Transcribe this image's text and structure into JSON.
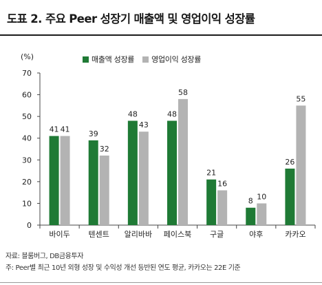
{
  "title": "도표 2. 주요 Peer 성장기 매출액 및 영업이익 성장률",
  "colors": {
    "revenue": "#1f7a35",
    "operating": "#b3b3b3"
  },
  "chart_data": {
    "type": "bar",
    "ylabel": "(%)",
    "ylim": [
      0,
      70
    ],
    "yticks": [
      0,
      10,
      20,
      30,
      40,
      50,
      60,
      70
    ],
    "grid": false,
    "legend_position": "top",
    "categories": [
      "바이두",
      "텐센트",
      "알리바바",
      "페이스북",
      "구글",
      "야후",
      "카카오"
    ],
    "series": [
      {
        "name": "매출액 성장률",
        "values": [
          41,
          39,
          48,
          48,
          21,
          8,
          26
        ]
      },
      {
        "name": "영업이익 성장률",
        "values": [
          41,
          32,
          43,
          58,
          16,
          10,
          55
        ]
      }
    ]
  },
  "footnotes": {
    "source": "자료: 블룸버그, DB금융투자",
    "note": "주: Peer별 최근 10년 외형 성장 및 수익성 개선 등반된 연도 평균, 카카오는 22E 기준"
  }
}
